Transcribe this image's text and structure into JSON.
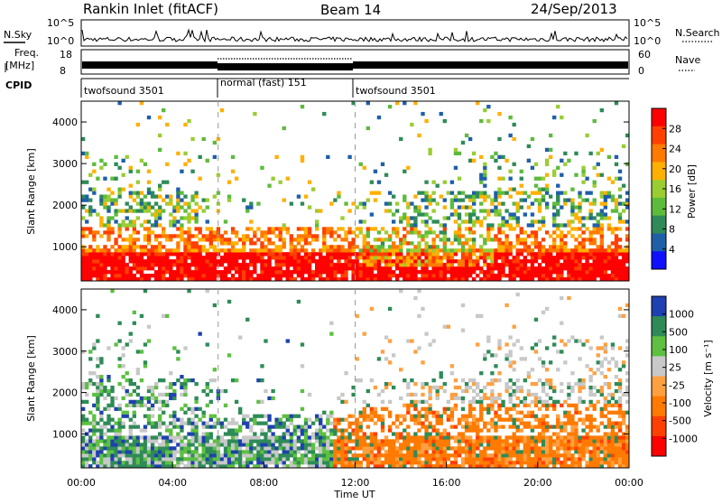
{
  "header": {
    "station": "Rankin Inlet (fitACF)",
    "beam": "Beam 14",
    "date": "24/Sep/2013"
  },
  "strip_panels": {
    "nsky": {
      "left_label": "N.Sky",
      "right_label": "N.Search",
      "left_ticks": [
        "10^5",
        "10^0"
      ],
      "right_ticks": [
        "10^5",
        "10^0"
      ]
    },
    "freq": {
      "left_label_line1": "Freq.",
      "left_label_line2": "[MHz]",
      "right_label": "Nave",
      "left_ticks": [
        "18",
        "8"
      ],
      "right_ticks": [
        "60",
        "0"
      ]
    },
    "cpid": {
      "label": "CPID",
      "segments": [
        {
          "label": "twofsound 3501",
          "start_hour": 0,
          "end_hour": 6
        },
        {
          "label": "normal (fast) 151",
          "start_hour": 6,
          "end_hour": 12
        },
        {
          "label": "twofsound 3501",
          "start_hour": 12,
          "end_hour": 24
        }
      ]
    }
  },
  "chart_data": [
    {
      "type": "heatmap",
      "name": "power",
      "ylabel": "Slant Range [km]",
      "colorbar_label": "Power [dB]",
      "colorbar_ticks": [
        "28",
        "24",
        "20",
        "16",
        "12",
        "8",
        "4"
      ],
      "ylim": [
        180,
        4500
      ],
      "yticks": [
        1000,
        2000,
        3000,
        4000
      ],
      "xlim": [
        0,
        24
      ],
      "colors": [
        "#ff0000",
        "#ff4000",
        "#ff7a00",
        "#ffb000",
        "#9acd32",
        "#5dbb3c",
        "#2e8b57",
        "#1f5fa8",
        "#1010ff"
      ]
    },
    {
      "type": "heatmap",
      "name": "velocity",
      "ylabel": "Slant Range [km]",
      "xlabel": "Time UT",
      "colorbar_label": "Velocity [m s⁻¹]",
      "colorbar_ticks": [
        "1000",
        "500",
        "100",
        "25",
        "-25",
        "-100",
        "-500",
        "-1000"
      ],
      "ylim": [
        180,
        4500
      ],
      "yticks": [
        1000,
        2000,
        3000,
        4000
      ],
      "xlim": [
        0,
        24
      ],
      "xticks": [
        "00:00",
        "04:00",
        "08:00",
        "12:00",
        "16:00",
        "20:00",
        "00:00"
      ],
      "colors": [
        "#1e40b0",
        "#2e8b57",
        "#5dc040",
        "#c8c8c8",
        "#ffa040",
        "#ff7a00",
        "#ff4000",
        "#ff0000"
      ]
    }
  ]
}
